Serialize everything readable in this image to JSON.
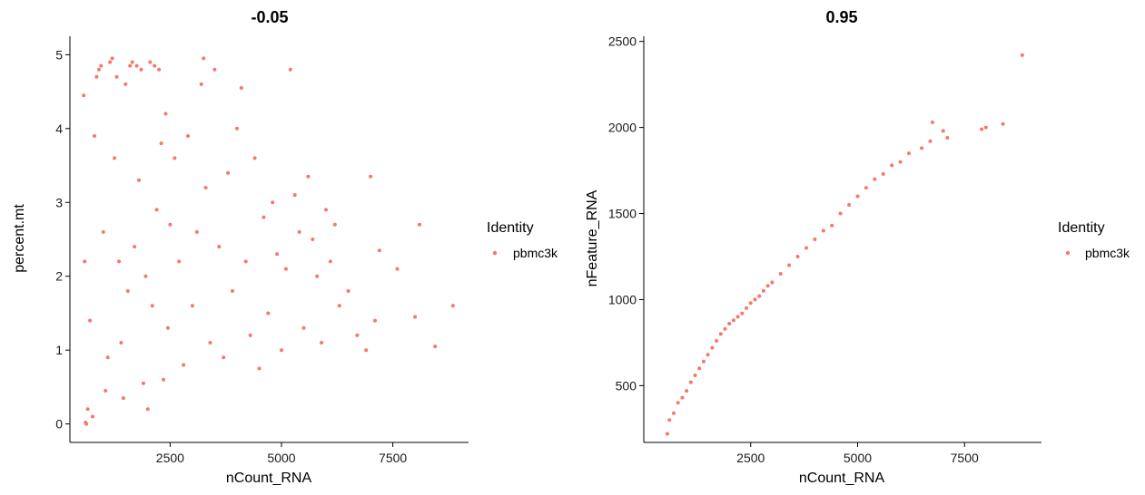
{
  "point_color": "#F8766D",
  "legend": {
    "title": "Identity",
    "label": "pbmc3k"
  },
  "chart_data": [
    {
      "type": "scatter",
      "title": "-0.05",
      "xlabel": "nCount_RNA",
      "ylabel": "percent.mt",
      "xlim": [
        250,
        9200
      ],
      "ylim": [
        -0.25,
        5.25
      ],
      "xticks": [
        2500,
        5000,
        7500
      ],
      "yticks": [
        0,
        1,
        2,
        3,
        4,
        5
      ],
      "grid": false,
      "series": [
        {
          "name": "pbmc3k",
          "points": [
            [
              560,
              4.45
            ],
            [
              580,
              2.2
            ],
            [
              600,
              0.02
            ],
            [
              620,
              0.0
            ],
            [
              650,
              0.2
            ],
            [
              700,
              1.4
            ],
            [
              760,
              0.1
            ],
            [
              800,
              3.9
            ],
            [
              850,
              4.7
            ],
            [
              900,
              4.8
            ],
            [
              950,
              4.85
            ],
            [
              1000,
              2.6
            ],
            [
              1050,
              0.45
            ],
            [
              1100,
              0.9
            ],
            [
              1150,
              4.9
            ],
            [
              1200,
              4.95
            ],
            [
              1250,
              3.6
            ],
            [
              1300,
              4.7
            ],
            [
              1350,
              2.2
            ],
            [
              1400,
              1.1
            ],
            [
              1450,
              0.35
            ],
            [
              1500,
              4.6
            ],
            [
              1550,
              1.8
            ],
            [
              1600,
              4.85
            ],
            [
              1650,
              4.9
            ],
            [
              1700,
              2.4
            ],
            [
              1750,
              4.85
            ],
            [
              1800,
              3.3
            ],
            [
              1850,
              4.8
            ],
            [
              1900,
              0.55
            ],
            [
              1950,
              2.0
            ],
            [
              2000,
              0.2
            ],
            [
              2050,
              4.9
            ],
            [
              2100,
              1.6
            ],
            [
              2150,
              4.85
            ],
            [
              2200,
              2.9
            ],
            [
              2250,
              4.8
            ],
            [
              2300,
              3.8
            ],
            [
              2350,
              0.6
            ],
            [
              2400,
              4.2
            ],
            [
              2450,
              1.3
            ],
            [
              2500,
              2.7
            ],
            [
              2600,
              3.6
            ],
            [
              2700,
              2.2
            ],
            [
              2800,
              0.8
            ],
            [
              2900,
              3.9
            ],
            [
              3000,
              1.6
            ],
            [
              3100,
              2.6
            ],
            [
              3200,
              4.6
            ],
            [
              3250,
              4.95
            ],
            [
              3300,
              3.2
            ],
            [
              3400,
              1.1
            ],
            [
              3500,
              4.8
            ],
            [
              3600,
              2.4
            ],
            [
              3700,
              0.9
            ],
            [
              3800,
              3.4
            ],
            [
              3900,
              1.8
            ],
            [
              4000,
              4.0
            ],
            [
              4100,
              4.55
            ],
            [
              4200,
              2.2
            ],
            [
              4300,
              1.2
            ],
            [
              4400,
              3.6
            ],
            [
              4500,
              0.75
            ],
            [
              4600,
              2.8
            ],
            [
              4700,
              1.5
            ],
            [
              4800,
              3.0
            ],
            [
              4900,
              2.3
            ],
            [
              5000,
              1.0
            ],
            [
              5100,
              2.1
            ],
            [
              5200,
              4.8
            ],
            [
              5300,
              3.1
            ],
            [
              5400,
              2.6
            ],
            [
              5500,
              1.3
            ],
            [
              5600,
              3.35
            ],
            [
              5700,
              2.5
            ],
            [
              5800,
              2.0
            ],
            [
              5900,
              1.1
            ],
            [
              6000,
              2.9
            ],
            [
              6100,
              2.2
            ],
            [
              6200,
              2.7
            ],
            [
              6300,
              1.6
            ],
            [
              6500,
              1.8
            ],
            [
              6700,
              1.2
            ],
            [
              6900,
              1.0
            ],
            [
              7000,
              3.35
            ],
            [
              7100,
              1.4
            ],
            [
              7200,
              2.35
            ],
            [
              7600,
              2.1
            ],
            [
              8000,
              1.45
            ],
            [
              8100,
              2.7
            ],
            [
              8450,
              1.05
            ],
            [
              8850,
              1.6
            ]
          ]
        }
      ]
    },
    {
      "type": "scatter",
      "title": "0.95",
      "xlabel": "nCount_RNA",
      "ylabel": "nFeature_RNA",
      "xlim": [
        0,
        9300
      ],
      "ylim": [
        170,
        2530
      ],
      "xticks": [
        2500,
        5000,
        7500
      ],
      "yticks": [
        500,
        1000,
        1500,
        2000,
        2500
      ],
      "grid": false,
      "series": [
        {
          "name": "pbmc3k",
          "points": [
            [
              550,
              220
            ],
            [
              600,
              300
            ],
            [
              700,
              340
            ],
            [
              800,
              400
            ],
            [
              900,
              430
            ],
            [
              1000,
              470
            ],
            [
              1100,
              520
            ],
            [
              1200,
              560
            ],
            [
              1300,
              600
            ],
            [
              1400,
              640
            ],
            [
              1500,
              680
            ],
            [
              1600,
              720
            ],
            [
              1700,
              760
            ],
            [
              1800,
              800
            ],
            [
              1900,
              830
            ],
            [
              2000,
              860
            ],
            [
              2100,
              880
            ],
            [
              2200,
              900
            ],
            [
              2300,
              920
            ],
            [
              2400,
              950
            ],
            [
              2500,
              980
            ],
            [
              2600,
              1000
            ],
            [
              2700,
              1020
            ],
            [
              2800,
              1050
            ],
            [
              2900,
              1080
            ],
            [
              3000,
              1100
            ],
            [
              3200,
              1150
            ],
            [
              3400,
              1200
            ],
            [
              3600,
              1250
            ],
            [
              3800,
              1300
            ],
            [
              4000,
              1350
            ],
            [
              4200,
              1400
            ],
            [
              4400,
              1430
            ],
            [
              4600,
              1500
            ],
            [
              4800,
              1550
            ],
            [
              5000,
              1600
            ],
            [
              5200,
              1650
            ],
            [
              5400,
              1700
            ],
            [
              5600,
              1730
            ],
            [
              5800,
              1780
            ],
            [
              6000,
              1800
            ],
            [
              6200,
              1850
            ],
            [
              6500,
              1880
            ],
            [
              6700,
              1920
            ],
            [
              6750,
              2030
            ],
            [
              7000,
              1980
            ],
            [
              7100,
              1940
            ],
            [
              7900,
              1990
            ],
            [
              8000,
              2000
            ],
            [
              8400,
              2020
            ],
            [
              8850,
              2420
            ]
          ]
        }
      ]
    }
  ]
}
